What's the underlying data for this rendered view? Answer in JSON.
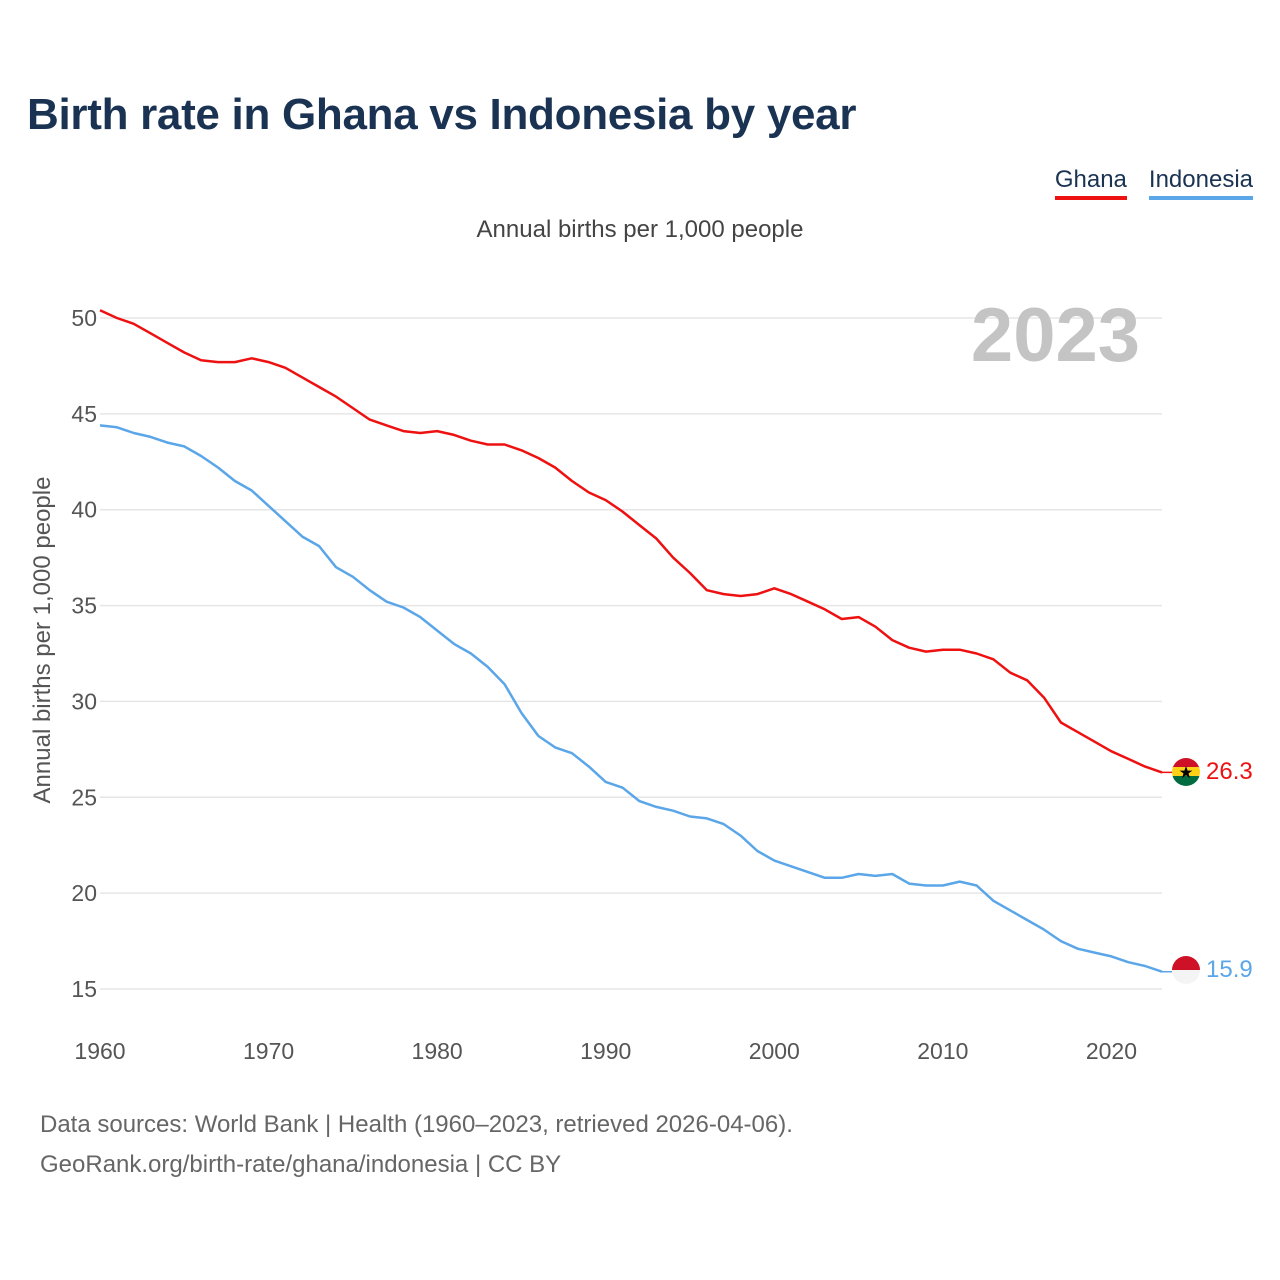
{
  "title": "Birth rate in Ghana vs Indonesia by year",
  "subtitle": "Annual births per 1,000 people",
  "source_line1": "Data sources: World Bank | Health (1960–2023, retrieved 2026-04-06).",
  "source_line2": "GeoRank.org/birth-rate/ghana/indonesia | CC BY",
  "legend": [
    {
      "name": "Ghana",
      "color": "#ee1111"
    },
    {
      "name": "Indonesia",
      "color": "#5aa6e8"
    }
  ],
  "chart_data": {
    "type": "line",
    "title": "Birth rate in Ghana vs Indonesia by year",
    "ylabel": "Annual births per 1,000 people",
    "xlabel": "",
    "year_label": "2023",
    "xlim": [
      1960,
      2023
    ],
    "ylim": [
      14,
      52
    ],
    "yticks": [
      15,
      20,
      25,
      30,
      35,
      40,
      45,
      50
    ],
    "xticks": [
      1960,
      1970,
      1980,
      1990,
      2000,
      2010,
      2020
    ],
    "x": [
      1960,
      1961,
      1962,
      1963,
      1964,
      1965,
      1966,
      1967,
      1968,
      1969,
      1970,
      1971,
      1972,
      1973,
      1974,
      1975,
      1976,
      1977,
      1978,
      1979,
      1980,
      1981,
      1982,
      1983,
      1984,
      1985,
      1986,
      1987,
      1988,
      1989,
      1990,
      1991,
      1992,
      1993,
      1994,
      1995,
      1996,
      1997,
      1998,
      1999,
      2000,
      2001,
      2002,
      2003,
      2004,
      2005,
      2006,
      2007,
      2008,
      2009,
      2010,
      2011,
      2012,
      2013,
      2014,
      2015,
      2016,
      2017,
      2018,
      2019,
      2020,
      2021,
      2022,
      2023
    ],
    "series": [
      {
        "name": "Ghana",
        "color": "#ee1111",
        "end_label": "26.3",
        "values": [
          50.4,
          50.0,
          49.7,
          49.2,
          48.7,
          48.2,
          47.8,
          47.7,
          47.7,
          47.9,
          47.7,
          47.4,
          46.9,
          46.4,
          45.9,
          45.3,
          44.7,
          44.4,
          44.1,
          44.0,
          44.1,
          43.9,
          43.6,
          43.4,
          43.4,
          43.1,
          42.7,
          42.2,
          41.5,
          40.9,
          40.5,
          39.9,
          39.2,
          38.5,
          37.5,
          36.7,
          35.8,
          35.6,
          35.5,
          35.6,
          35.9,
          35.6,
          35.2,
          34.8,
          34.3,
          34.4,
          33.9,
          33.2,
          32.8,
          32.6,
          32.7,
          32.7,
          32.5,
          32.2,
          31.5,
          31.1,
          30.2,
          28.9,
          28.4,
          27.9,
          27.4,
          27.0,
          26.6,
          26.3
        ]
      },
      {
        "name": "Indonesia",
        "color": "#5aa6e8",
        "end_label": "15.9",
        "values": [
          44.4,
          44.3,
          44.0,
          43.8,
          43.5,
          43.3,
          42.8,
          42.2,
          41.5,
          41.0,
          40.2,
          39.4,
          38.6,
          38.1,
          37.0,
          36.5,
          35.8,
          35.2,
          34.9,
          34.4,
          33.7,
          33.0,
          32.5,
          31.8,
          30.9,
          29.4,
          28.2,
          27.6,
          27.3,
          26.6,
          25.8,
          25.5,
          24.8,
          24.5,
          24.3,
          24.0,
          23.9,
          23.6,
          23.0,
          22.2,
          21.7,
          21.4,
          21.1,
          20.8,
          20.8,
          21.0,
          20.9,
          21.0,
          20.5,
          20.4,
          20.4,
          20.6,
          20.4,
          19.6,
          19.1,
          18.6,
          18.1,
          17.5,
          17.1,
          16.9,
          16.7,
          16.4,
          16.2,
          15.9
        ]
      }
    ]
  }
}
